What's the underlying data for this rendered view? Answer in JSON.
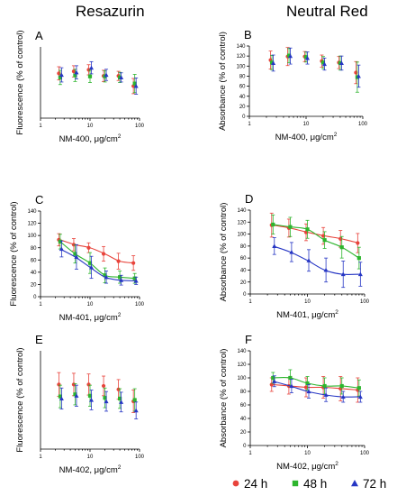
{
  "column_titles": [
    "Resazurin",
    "Neutral Red"
  ],
  "legend": [
    {
      "label": "24 h",
      "color": "#e8433b",
      "marker": "circle"
    },
    {
      "label": "48 h",
      "color": "#2db52d",
      "marker": "square"
    },
    {
      "label": "72 h",
      "color": "#2636c4",
      "marker": "triangle"
    }
  ],
  "chart_data": [
    {
      "type": "scatter",
      "panel": "A",
      "xlabel": "NM-400, μg/cm²",
      "ylabel": "Fluorescence (% of control)",
      "xscale": "log",
      "xlim": [
        1,
        100
      ],
      "ylim": [
        0,
        140
      ],
      "xticks": [
        1,
        10,
        100
      ],
      "yticks": [],
      "x": [
        2.5,
        5,
        10,
        20,
        40,
        80
      ],
      "series": [
        {
          "name": "24 h",
          "values": [
            88,
            92,
            95,
            83,
            83,
            63
          ],
          "errors": [
            13,
            11,
            10,
            11,
            9,
            15
          ],
          "fit": false
        },
        {
          "name": "48 h",
          "values": [
            80,
            84,
            82,
            82,
            80,
            68
          ],
          "errors": [
            14,
            12,
            12,
            11,
            10,
            18
          ],
          "fit": false
        },
        {
          "name": "72 h",
          "values": [
            85,
            90,
            99,
            85,
            80,
            63
          ],
          "errors": [
            14,
            13,
            12,
            11,
            9,
            16
          ],
          "fit": false
        }
      ]
    },
    {
      "type": "scatter",
      "panel": "B",
      "xlabel": "NM-400, μg/cm²",
      "ylabel": "Absorbance (% of control)",
      "xscale": "log",
      "xlim": [
        1,
        100
      ],
      "ylim": [
        0,
        140
      ],
      "xticks": [
        1,
        10,
        100
      ],
      "yticks": [
        0,
        20,
        40,
        60,
        80,
        100,
        120,
        140
      ],
      "x": [
        2.5,
        5,
        10,
        20,
        40,
        80
      ],
      "series": [
        {
          "name": "24 h",
          "values": [
            112,
            119,
            119,
            110,
            107,
            87
          ],
          "errors": [
            18,
            18,
            10,
            12,
            12,
            22
          ],
          "fit": false
        },
        {
          "name": "48 h",
          "values": [
            107,
            121,
            118,
            107,
            106,
            78
          ],
          "errors": [
            14,
            14,
            10,
            12,
            14,
            30
          ],
          "fit": false
        },
        {
          "name": "72 h",
          "values": [
            106,
            120,
            116,
            104,
            106,
            80
          ],
          "errors": [
            16,
            16,
            12,
            12,
            14,
            22
          ],
          "fit": false
        }
      ]
    },
    {
      "type": "scatter",
      "panel": "C",
      "xlabel": "NM-401, μg/cm²",
      "ylabel": "Fluorescence (% of control)",
      "xscale": "log",
      "xlim": [
        1,
        100
      ],
      "ylim": [
        0,
        140
      ],
      "xticks": [
        1,
        10,
        100
      ],
      "yticks": [
        0,
        20,
        40,
        60,
        80,
        100,
        120,
        140
      ],
      "x": [
        2.5,
        5,
        10,
        20,
        40,
        80
      ],
      "series": [
        {
          "name": "24 h",
          "values": [
            93,
            85,
            80,
            70,
            58,
            55
          ],
          "errors": [
            10,
            10,
            8,
            12,
            13,
            12
          ],
          "fit": true
        },
        {
          "name": "48 h",
          "values": [
            90,
            70,
            55,
            35,
            32,
            30
          ],
          "errors": [
            12,
            15,
            17,
            12,
            10,
            8
          ],
          "fit": true
        },
        {
          "name": "72 h",
          "values": [
            78,
            65,
            48,
            32,
            27,
            26
          ],
          "errors": [
            13,
            20,
            18,
            10,
            8,
            6
          ],
          "fit": true
        }
      ]
    },
    {
      "type": "scatter",
      "panel": "D",
      "xlabel": "NM-401, μg/cm²",
      "ylabel": "Absorbance (% of control)",
      "xscale": "log",
      "xlim": [
        1,
        100
      ],
      "ylim": [
        0,
        140
      ],
      "xticks": [
        1,
        10,
        100
      ],
      "yticks": [
        0,
        20,
        40,
        60,
        80,
        100,
        120,
        140
      ],
      "x": [
        2.5,
        5,
        10,
        20,
        40,
        80
      ],
      "series": [
        {
          "name": "24 h",
          "values": [
            115,
            110,
            103,
            97,
            92,
            85
          ],
          "errors": [
            20,
            15,
            14,
            14,
            14,
            16
          ],
          "fit": true
        },
        {
          "name": "48 h",
          "values": [
            116,
            112,
            108,
            90,
            78,
            60
          ],
          "errors": [
            16,
            16,
            15,
            14,
            18,
            18
          ],
          "fit": true
        },
        {
          "name": "72 h",
          "values": [
            80,
            70,
            56,
            40,
            33,
            33
          ],
          "errors": [
            14,
            16,
            18,
            20,
            22,
            20
          ],
          "fit": true
        }
      ]
    },
    {
      "type": "scatter",
      "panel": "E",
      "xlabel": "NM-402, μg/cm²",
      "ylabel": "Fluorescence (% of control)",
      "xscale": "log",
      "xlim": [
        1,
        100
      ],
      "ylim": [
        0,
        140
      ],
      "xticks": [
        1,
        10,
        100
      ],
      "yticks": [],
      "x": [
        2.5,
        5,
        10,
        20,
        40,
        80
      ],
      "series": [
        {
          "name": "24 h",
          "values": [
            92,
            92,
            92,
            90,
            85,
            68
          ],
          "errors": [
            17,
            16,
            15,
            14,
            14,
            16
          ],
          "fit": false
        },
        {
          "name": "48 h",
          "values": [
            75,
            78,
            76,
            73,
            72,
            70
          ],
          "errors": [
            16,
            15,
            15,
            14,
            14,
            16
          ],
          "fit": false
        },
        {
          "name": "72 h",
          "values": [
            72,
            76,
            70,
            68,
            67,
            55
          ],
          "errors": [
            15,
            15,
            14,
            14,
            14,
            12
          ],
          "fit": false
        }
      ]
    },
    {
      "type": "scatter",
      "panel": "F",
      "xlabel": "NM-402, μg/cm²",
      "ylabel": "Absorbance (% of control)",
      "xscale": "log",
      "xlim": [
        1,
        100
      ],
      "ylim": [
        0,
        140
      ],
      "xticks": [
        1,
        10,
        100
      ],
      "yticks": [
        0,
        20,
        40,
        60,
        80,
        100,
        120,
        140
      ],
      "x": [
        2.5,
        5,
        10,
        20,
        40,
        80
      ],
      "series": [
        {
          "name": "24 h",
          "values": [
            90,
            88,
            86,
            86,
            84,
            82
          ],
          "errors": [
            10,
            12,
            14,
            16,
            18,
            18
          ],
          "fit": true
        },
        {
          "name": "48 h",
          "values": [
            100,
            100,
            92,
            88,
            88,
            85
          ],
          "errors": [
            8,
            12,
            10,
            12,
            12,
            12
          ],
          "fit": true
        },
        {
          "name": "72 h",
          "values": [
            95,
            88,
            80,
            75,
            72,
            72
          ],
          "errors": [
            8,
            10,
            10,
            10,
            8,
            8
          ],
          "fit": true
        }
      ]
    }
  ]
}
